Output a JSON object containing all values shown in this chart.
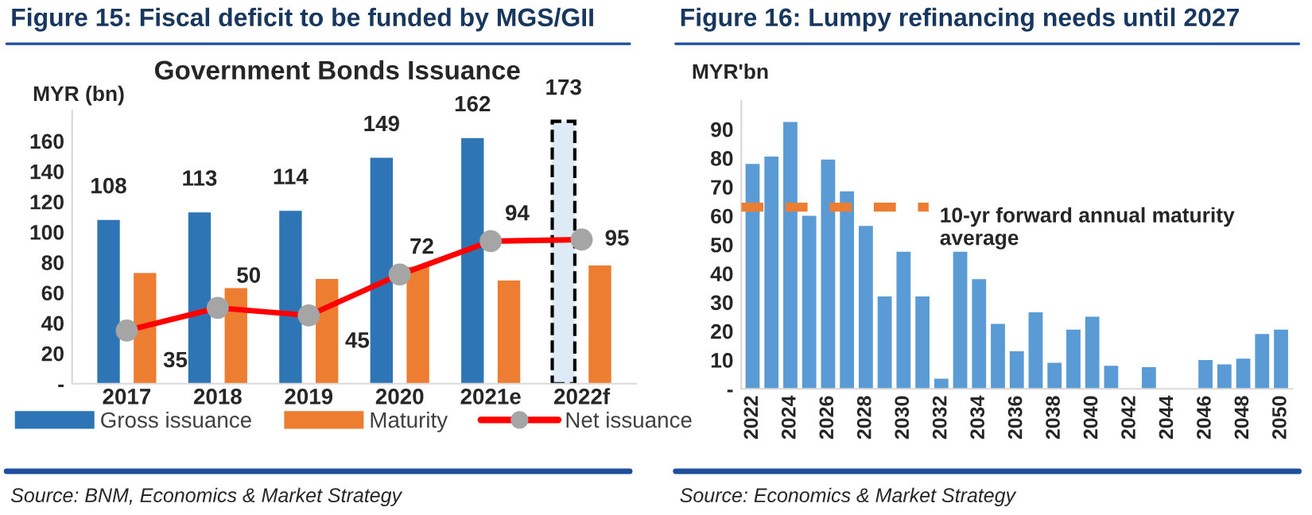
{
  "chart_data": [
    {
      "type": "bar",
      "title": "Figure 15: Fiscal deficit to be funded by MGS/GII",
      "subtitle": "Government Bonds Issuance",
      "ylabel": "MYR (bn)",
      "categories": [
        "2017",
        "2018",
        "2019",
        "2020",
        "2021e",
        "2022f"
      ],
      "series": [
        {
          "name": "Gross issuance",
          "color": "#2e75b6",
          "colors": [
            "#2e75b6",
            "#2e75b6",
            "#2e75b6",
            "#2e75b6",
            "#2e75b6",
            "#deebf7"
          ],
          "values": [
            108,
            113,
            114,
            149,
            162,
            173
          ],
          "value_labels": [
            "108",
            "113",
            "114",
            "149",
            "162",
            "173"
          ]
        },
        {
          "name": "Maturity",
          "color": "#ed7d31",
          "values": [
            73,
            63,
            69,
            77,
            68,
            78
          ]
        },
        {
          "name": "Net issuance",
          "type": "line",
          "color": "#ff0000",
          "marker": "circle",
          "values": [
            35,
            50,
            45,
            72,
            94,
            95
          ],
          "value_labels": [
            "35",
            "50",
            "45",
            "72",
            "94",
            "95"
          ]
        }
      ],
      "ylim": [
        0,
        180
      ],
      "yticks": [
        {
          "value": 0,
          "label": "-"
        },
        20,
        40,
        60,
        80,
        100,
        120,
        140,
        160
      ],
      "legend": "bottom",
      "annotations": [
        "Source: BNM, Economics & Market Strategy"
      ]
    },
    {
      "type": "bar",
      "title": "Figure 16: Lumpy refinancing needs until 2027",
      "ylabel": "MYR'bn",
      "categories": [
        "2022",
        null,
        "2024",
        null,
        "2026",
        null,
        "2028",
        null,
        "2030",
        null,
        "2032",
        null,
        "2034",
        null,
        "2036",
        null,
        "2038",
        null,
        "2040",
        null,
        "2042",
        null,
        "2044",
        null,
        "2046",
        null,
        "2048",
        null,
        "2050"
      ],
      "values": [
        78,
        80.5,
        92.5,
        60,
        79.5,
        68.5,
        56.5,
        32,
        47.5,
        32,
        3.5,
        47.5,
        38,
        22.5,
        13,
        26.5,
        9,
        20.5,
        25,
        8,
        0,
        7.5,
        0,
        0,
        10,
        8.5,
        10.5,
        19,
        20.5
      ],
      "color": "#5b9bd5",
      "ylim": [
        0,
        100
      ],
      "yticks": [
        {
          "value": 0,
          "label": "-"
        },
        10,
        20,
        30,
        40,
        50,
        60,
        70,
        80,
        90
      ],
      "ref_lines": [
        {
          "axis": "y",
          "value": 63,
          "label": "10-yr forward annual maturity average",
          "color": "#ed7d31",
          "line_style": "dashed"
        }
      ],
      "annotations": [
        "Source: Economics & Market Strategy"
      ]
    }
  ]
}
